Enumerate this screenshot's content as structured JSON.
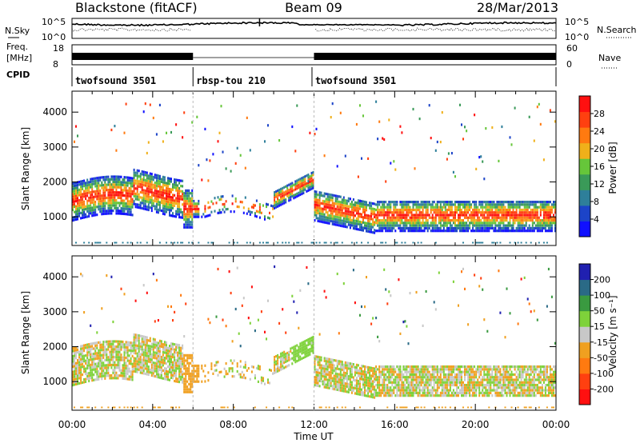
{
  "header": {
    "station": "Blackstone (fitACF)",
    "beam": "Beam 09",
    "date": "28/Mar/2013"
  },
  "noise_panel": {
    "left_label": "N.Sky",
    "right_label": "N.Search",
    "left_ticks": [
      "10^5",
      "10^0"
    ],
    "right_ticks": [
      "10^5",
      "10^0"
    ]
  },
  "freq_panel": {
    "left_label_1": "Freq.",
    "left_label_2": "[MHz]",
    "left_ticks": [
      "18",
      "8"
    ],
    "right_label": "Nave",
    "right_ticks": [
      "60",
      "0"
    ]
  },
  "cpid": {
    "label": "CPID",
    "segments": [
      {
        "name": "twofsound 3501",
        "start": 0,
        "end": 6
      },
      {
        "name": "rbsp-tou 210",
        "start": 6,
        "end": 11.9
      },
      {
        "name": "twofsound 3501",
        "start": 11.9,
        "end": 24
      }
    ]
  },
  "chart_data": [
    {
      "type": "heatmap",
      "name": "Power",
      "ylabel": "Slant Range [km]",
      "xlim": [
        0,
        24
      ],
      "ylim": [
        180,
        4600
      ],
      "yticks": [
        1000,
        2000,
        3000,
        4000
      ],
      "colorbar": {
        "label": "Power [dB]",
        "ticks": [
          "4",
          "8",
          "12",
          "16",
          "20",
          "24",
          "28"
        ],
        "range": [
          0,
          30
        ],
        "colors": [
          "#1010ff",
          "#1c44c8",
          "#2e7f9a",
          "#3a9a58",
          "#66c63a",
          "#f0b01a",
          "#ff7a10",
          "#ff4010",
          "#ff1010"
        ]
      }
    },
    {
      "type": "heatmap",
      "name": "Velocity",
      "ylabel": "Slant Range [km]",
      "xlim": [
        0,
        24
      ],
      "ylim": [
        180,
        4600
      ],
      "yticks": [
        1000,
        2000,
        3000,
        4000
      ],
      "xlabel": "Time UT",
      "xticks": [
        "00:00",
        "04:00",
        "08:00",
        "12:00",
        "16:00",
        "20:00",
        "00:00"
      ],
      "colorbar": {
        "label": "Velocity [m s⁻¹]",
        "ticks": [
          "200",
          "100",
          "50",
          "15",
          "-15",
          "-50",
          "-100",
          "-200"
        ],
        "range": [
          -250,
          250
        ],
        "colors": [
          "#2020b0",
          "#2a6a86",
          "#3a9a40",
          "#7ed23a",
          "#c8c8c8",
          "#f0a020",
          "#ff7a10",
          "#ff4010",
          "#ff1010"
        ]
      }
    }
  ]
}
